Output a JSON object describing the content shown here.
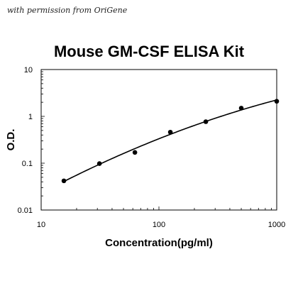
{
  "watermark": "with permission from OriGene",
  "chart_data": {
    "type": "scatter",
    "title": "Mouse GM-CSF ELISA Kit",
    "xlabel": "Concentration(pg/ml)",
    "ylabel": "O.D.",
    "x_scale": "log",
    "y_scale": "log",
    "xlim": [
      10,
      1000
    ],
    "ylim": [
      0.01,
      10
    ],
    "x_ticks": [
      "10",
      "100",
      "1000"
    ],
    "y_ticks": [
      "10",
      "1",
      "0.1",
      "0.01"
    ],
    "y_tick_values": [
      10,
      1,
      0.1,
      0.01
    ],
    "x_tick_values": [
      10,
      100,
      1000
    ],
    "grid": false,
    "legend": "none",
    "series": [
      {
        "x": [
          15.6,
          31.25,
          62.5,
          125,
          250,
          500,
          1000
        ],
        "y": [
          0.042,
          0.098,
          0.17,
          0.46,
          0.77,
          1.5,
          2.1
        ],
        "point_color": "#000000",
        "fit_curve": true
      }
    ]
  }
}
